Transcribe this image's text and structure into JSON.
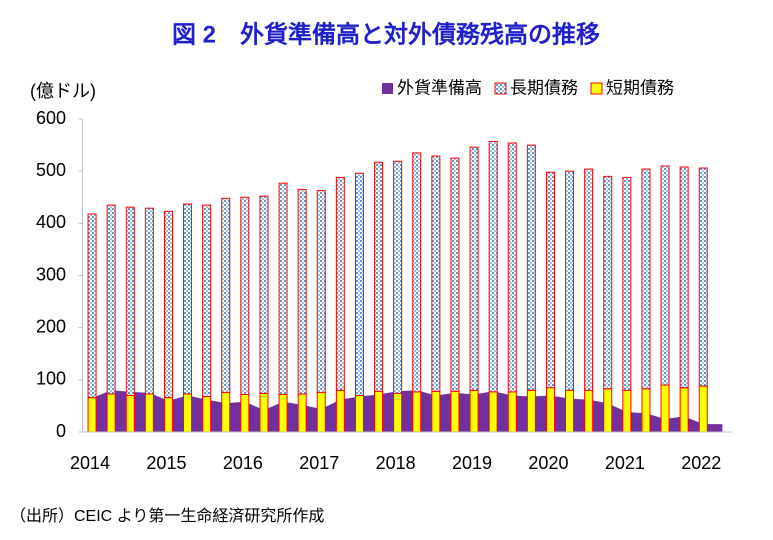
{
  "chart_data": {
    "type": "bar",
    "title": "図 2　外貨準備高と対外債務残高の推移",
    "y_label": "(億ドル)",
    "source": "（出所）CEIC より第一生命経済研究所作成",
    "categories": [
      "2014",
      null,
      null,
      null,
      "2015",
      null,
      null,
      null,
      "2016",
      null,
      null,
      null,
      "2017",
      null,
      null,
      null,
      "2018",
      null,
      null,
      null,
      "2019",
      null,
      null,
      null,
      "2020",
      null,
      null,
      null,
      "2021",
      null,
      null,
      null,
      "2022",
      null
    ],
    "series": [
      {
        "name": "外貨準備高",
        "type": "area",
        "color": "#7030a0",
        "values": [
          65,
          80,
          77,
          75,
          60,
          70,
          62,
          55,
          58,
          42,
          58,
          52,
          44,
          62,
          68,
          72,
          78,
          80,
          70,
          75,
          72,
          78,
          70,
          68,
          70,
          64,
          62,
          55,
          38,
          36,
          25,
          30,
          15,
          15
        ]
      },
      {
        "name": "長期債務",
        "type": "bar",
        "color": "#9dc3e6",
        "values": [
          352,
          362,
          361,
          356,
          357,
          364,
          367,
          372,
          378,
          378,
          405,
          392,
          387,
          408,
          426,
          439,
          445,
          458,
          451,
          447,
          466,
          480,
          477,
          470,
          413,
          420,
          424,
          407,
          408,
          421,
          420,
          423,
          418,
          null
        ]
      },
      {
        "name": "短期債務",
        "type": "bar",
        "color": "#ffff00",
        "values": [
          66,
          73,
          70,
          73,
          66,
          73,
          68,
          76,
          72,
          74,
          72,
          73,
          76,
          80,
          70,
          78,
          74,
          77,
          78,
          78,
          80,
          77,
          77,
          80,
          85,
          80,
          80,
          83,
          80,
          83,
          90,
          85,
          88,
          null
        ]
      }
    ],
    "ylim": [
      0,
      600
    ],
    "yticks": [
      0,
      100,
      200,
      300,
      400,
      500,
      600
    ],
    "outline_color": "#ff0000"
  }
}
